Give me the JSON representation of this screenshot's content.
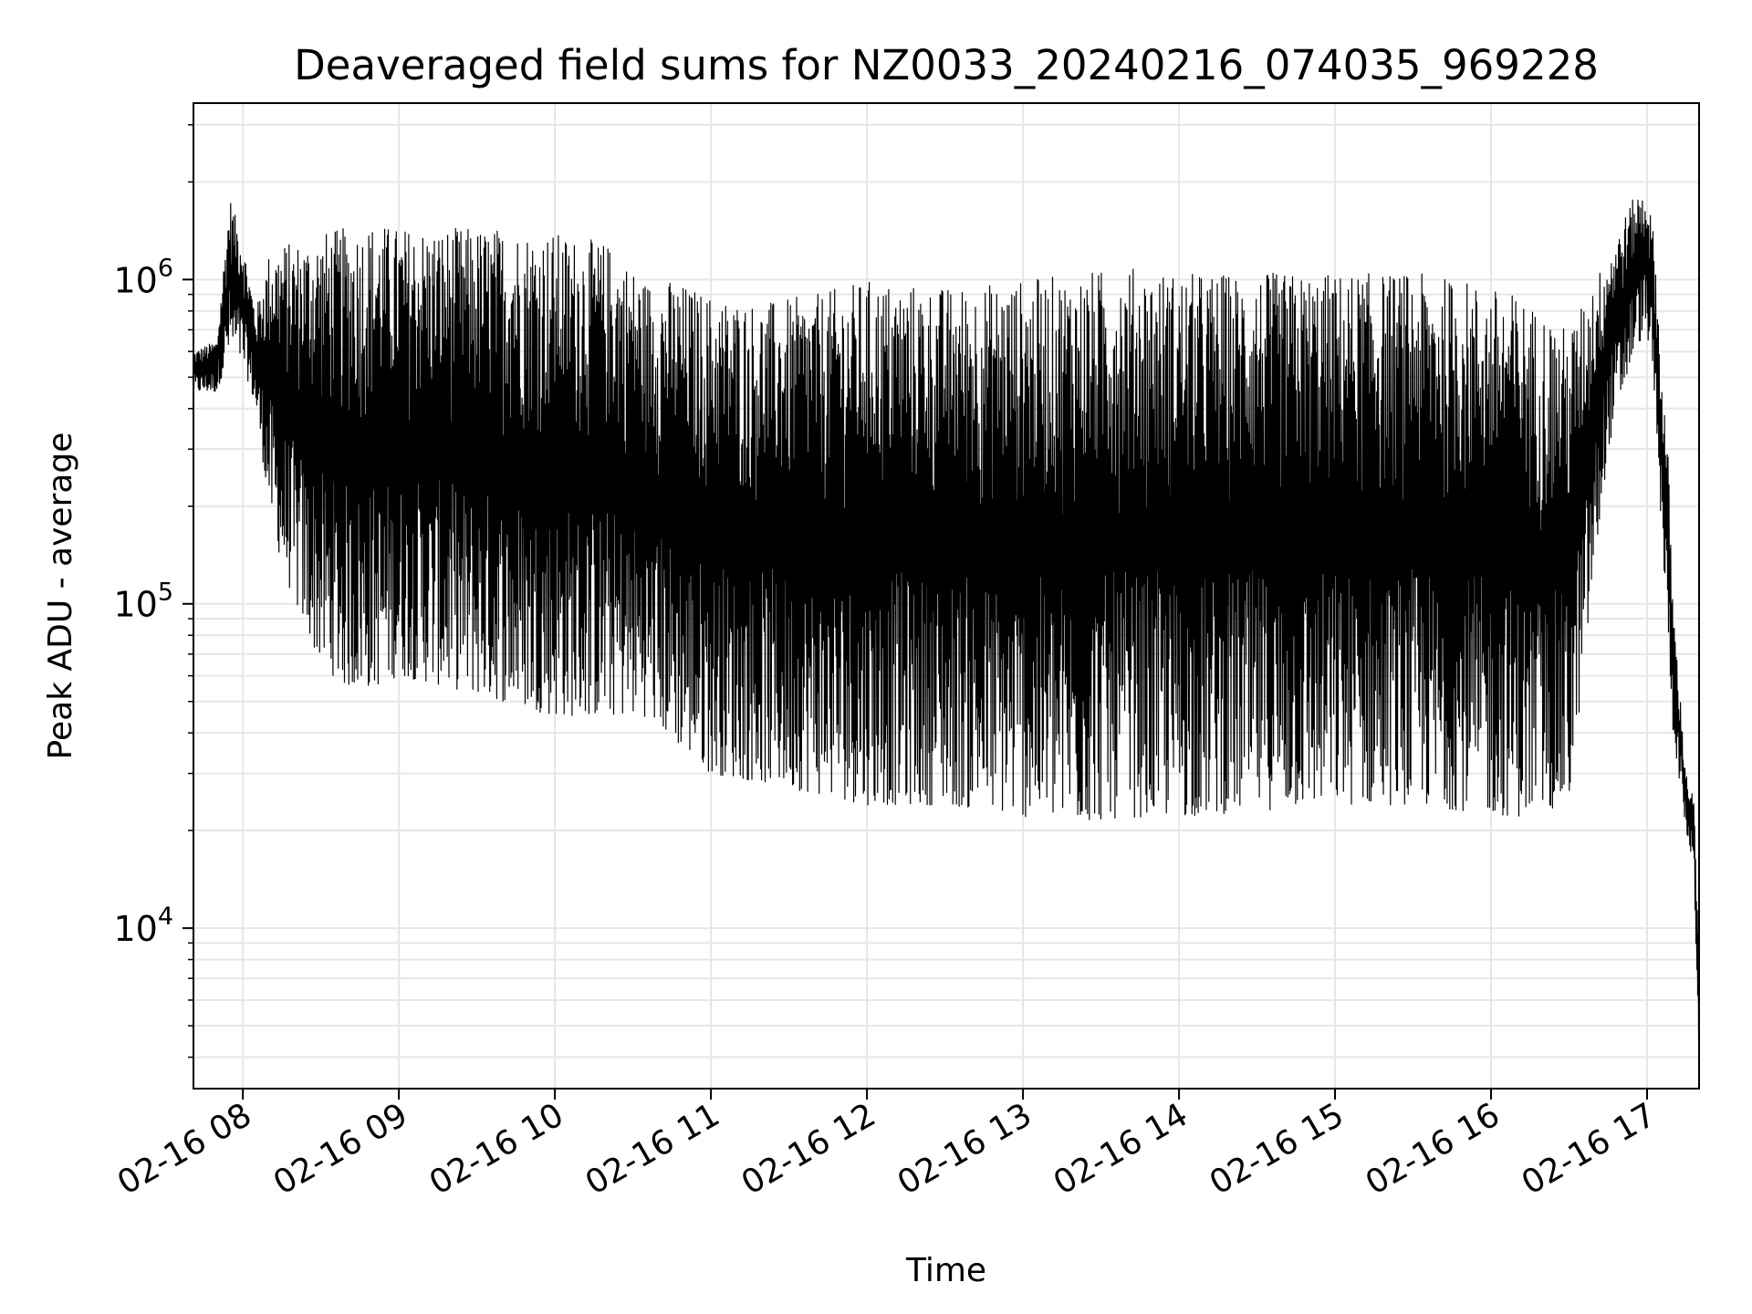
{
  "chart_data": {
    "type": "line",
    "title": "Deaveraged field sums for NZ0033_20240216_074035_969228",
    "xlabel": "Time",
    "ylabel": "Peak ADU - average",
    "yscale": "log",
    "ylim": [
      3200,
      3500000
    ],
    "xlim": [
      "2024-02-16T07:41",
      "2024-02-16T17:20"
    ],
    "grid": true,
    "legend": "none",
    "line_color": "#000000",
    "grid_color": "#e6e6e6",
    "x_ticks": [
      {
        "value": "2024-02-16T08:00",
        "label": "02-16 08"
      },
      {
        "value": "2024-02-16T09:00",
        "label": "02-16 09"
      },
      {
        "value": "2024-02-16T10:00",
        "label": "02-16 10"
      },
      {
        "value": "2024-02-16T11:00",
        "label": "02-16 11"
      },
      {
        "value": "2024-02-16T12:00",
        "label": "02-16 12"
      },
      {
        "value": "2024-02-16T13:00",
        "label": "02-16 13"
      },
      {
        "value": "2024-02-16T14:00",
        "label": "02-16 14"
      },
      {
        "value": "2024-02-16T15:00",
        "label": "02-16 15"
      },
      {
        "value": "2024-02-16T16:00",
        "label": "02-16 16"
      },
      {
        "value": "2024-02-16T17:00",
        "label": "02-16 17"
      }
    ],
    "y_ticks": [
      {
        "value": 10000,
        "base": "10",
        "exp": "4"
      },
      {
        "value": 100000,
        "base": "10",
        "exp": "5"
      },
      {
        "value": 1000000,
        "base": "10",
        "exp": "6"
      }
    ],
    "envelope": {
      "x": [
        "2024-02-16T07:41",
        "2024-02-16T07:50",
        "2024-02-16T07:55",
        "2024-02-16T08:00",
        "2024-02-16T08:05",
        "2024-02-16T08:10",
        "2024-02-16T08:15",
        "2024-02-16T08:20",
        "2024-02-16T08:30",
        "2024-02-16T08:40",
        "2024-02-16T08:50",
        "2024-02-16T09:00",
        "2024-02-16T09:20",
        "2024-02-16T09:40",
        "2024-02-16T10:00",
        "2024-02-16T10:20",
        "2024-02-16T10:35",
        "2024-02-16T10:45",
        "2024-02-16T11:00",
        "2024-02-16T11:20",
        "2024-02-16T11:40",
        "2024-02-16T12:00",
        "2024-02-16T12:30",
        "2024-02-16T13:00",
        "2024-02-16T13:20",
        "2024-02-16T13:40",
        "2024-02-16T14:00",
        "2024-02-16T14:30",
        "2024-02-16T15:00",
        "2024-02-16T15:30",
        "2024-02-16T15:50",
        "2024-02-16T16:10",
        "2024-02-16T16:30",
        "2024-02-16T16:45",
        "2024-02-16T16:55",
        "2024-02-16T17:00",
        "2024-02-16T17:03",
        "2024-02-16T17:05",
        "2024-02-16T17:08",
        "2024-02-16T17:10",
        "2024-02-16T17:15",
        "2024-02-16T17:18",
        "2024-02-16T17:20"
      ],
      "upper": [
        600000,
        650000,
        1800000,
        1300000,
        800000,
        1200000,
        1300000,
        1300000,
        1400000,
        1450000,
        1500000,
        1450000,
        1450000,
        1450000,
        1400000,
        1300000,
        1000000,
        1000000,
        900000,
        850000,
        900000,
        1000000,
        950000,
        1000000,
        1050000,
        1100000,
        1050000,
        1050000,
        1050000,
        1050000,
        1000000,
        900000,
        700000,
        1200000,
        1800000,
        1900000,
        1300000,
        600000,
        300000,
        100000,
        30000,
        25000,
        8000
      ],
      "lower": [
        450000,
        450000,
        600000,
        550000,
        400000,
        200000,
        130000,
        100000,
        65000,
        55000,
        55000,
        60000,
        55000,
        50000,
        45000,
        45000,
        45000,
        38000,
        30000,
        28000,
        26000,
        24000,
        24000,
        22000,
        21000,
        22000,
        22000,
        23000,
        24000,
        24000,
        23000,
        22000,
        24000,
        300000,
        600000,
        700000,
        400000,
        200000,
        80000,
        40000,
        20000,
        15000,
        4000
      ]
    }
  }
}
